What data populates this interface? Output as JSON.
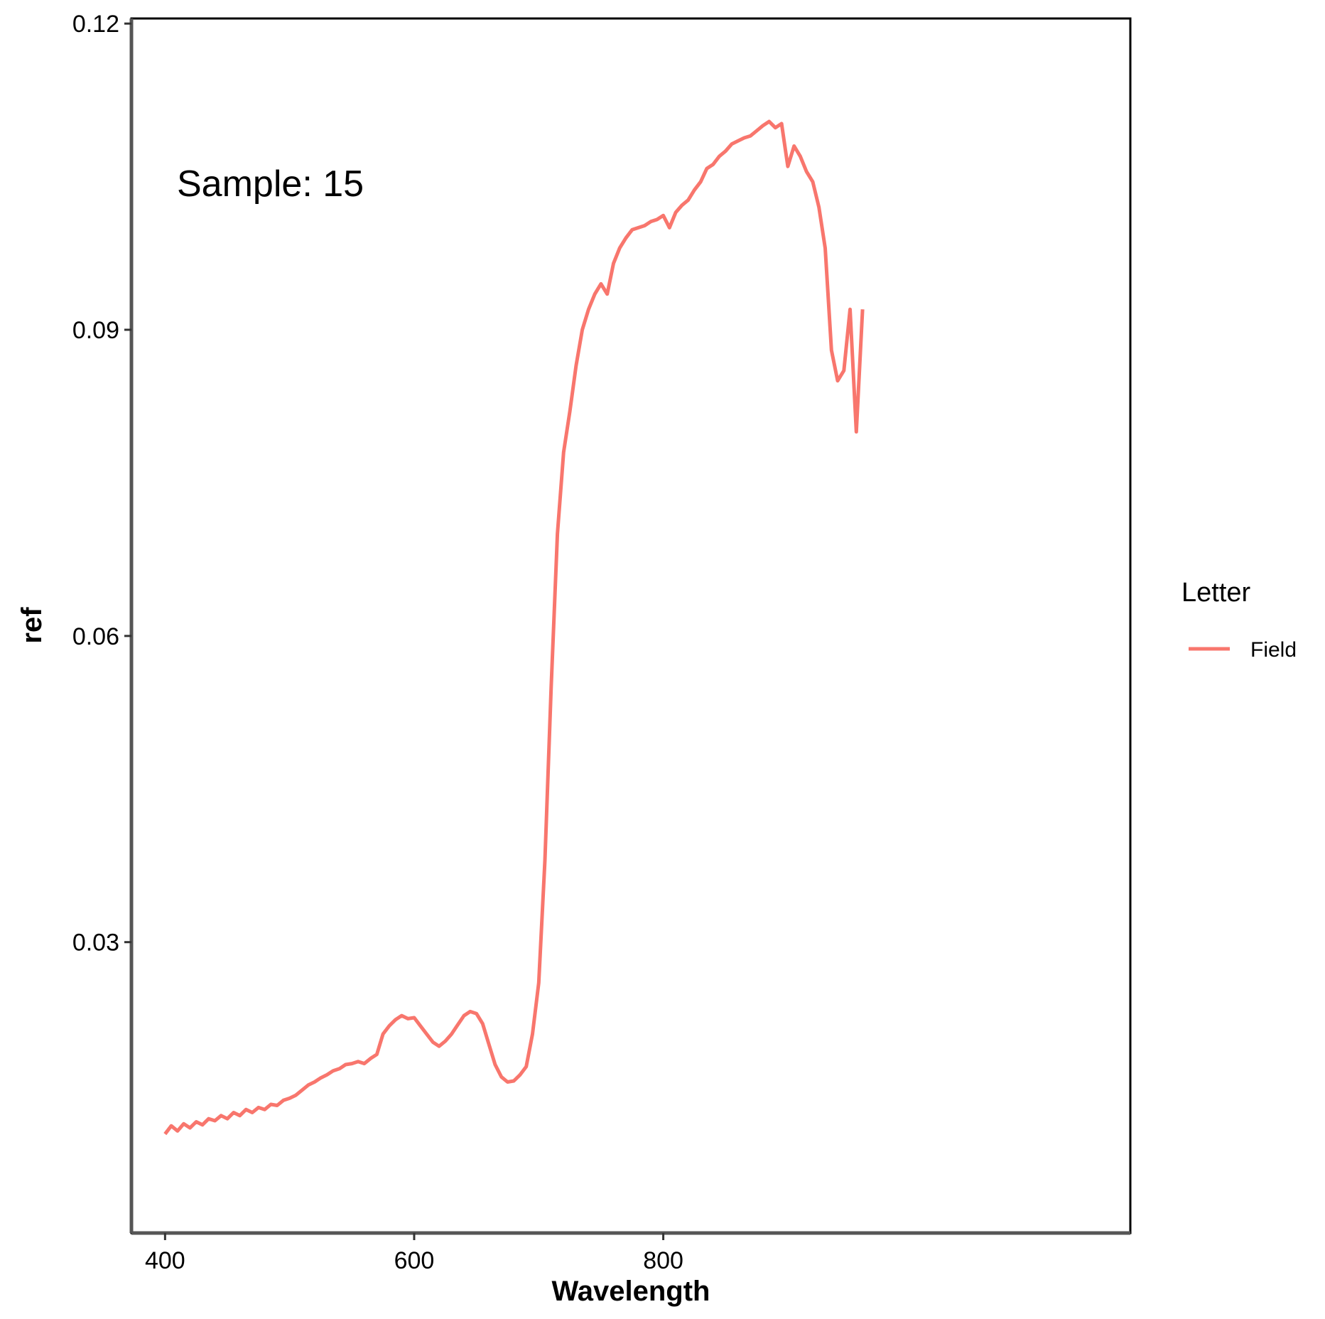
{
  "chart_data": {
    "type": "line",
    "title": "",
    "xlabel": "Wavelength",
    "ylabel": "ref",
    "xlim": [
      373,
      1175
    ],
    "ylim": [
      0.0015,
      0.1205
    ],
    "x_ticks": [
      400,
      600,
      800
    ],
    "x_tick_labels": [
      "400",
      "600",
      "800"
    ],
    "y_ticks": [
      0.03,
      0.06,
      0.09,
      0.12
    ],
    "y_tick_labels": [
      "0.03",
      "0.06",
      "0.09",
      "0.12"
    ],
    "grid": false,
    "legend": {
      "title": "Letter",
      "position": "right",
      "entries": [
        "Field"
      ]
    },
    "annotation": "Sample: 15",
    "series": [
      {
        "name": "Field",
        "color": "#F8766D",
        "x": [
          400,
          405,
          410,
          415,
          420,
          425,
          430,
          435,
          440,
          445,
          450,
          455,
          460,
          465,
          470,
          475,
          480,
          485,
          490,
          495,
          500,
          505,
          510,
          515,
          520,
          525,
          530,
          535,
          540,
          545,
          550,
          555,
          560,
          565,
          570,
          575,
          580,
          585,
          590,
          595,
          600,
          605,
          610,
          615,
          620,
          625,
          630,
          635,
          640,
          645,
          650,
          655,
          660,
          665,
          670,
          675,
          680,
          685,
          690,
          695,
          700,
          705,
          710,
          715,
          720,
          725,
          730,
          735,
          740,
          745,
          750,
          755,
          760,
          765,
          770,
          775,
          780,
          785,
          790,
          795,
          800,
          805,
          810,
          815,
          820,
          825,
          830,
          835,
          840,
          845,
          850,
          855,
          860,
          865,
          870,
          875,
          880,
          885,
          890,
          895,
          900,
          905,
          910,
          915,
          920,
          925,
          930,
          935,
          940,
          945,
          950,
          955,
          960
        ],
        "y": [
          0.0112,
          0.012,
          0.0115,
          0.0122,
          0.0118,
          0.0124,
          0.0121,
          0.0127,
          0.0125,
          0.013,
          0.0127,
          0.0133,
          0.013,
          0.0136,
          0.0133,
          0.0138,
          0.0136,
          0.0141,
          0.014,
          0.0145,
          0.0147,
          0.015,
          0.0155,
          0.016,
          0.0163,
          0.0167,
          0.017,
          0.0174,
          0.0176,
          0.018,
          0.0181,
          0.0183,
          0.0181,
          0.0186,
          0.019,
          0.021,
          0.0218,
          0.0224,
          0.0228,
          0.0225,
          0.0226,
          0.0218,
          0.021,
          0.0202,
          0.0198,
          0.0203,
          0.021,
          0.0219,
          0.0228,
          0.0232,
          0.023,
          0.022,
          0.02,
          0.018,
          0.0168,
          0.0163,
          0.0164,
          0.017,
          0.0178,
          0.021,
          0.026,
          0.038,
          0.055,
          0.07,
          0.078,
          0.082,
          0.0865,
          0.09,
          0.092,
          0.0935,
          0.0945,
          0.0935,
          0.0965,
          0.098,
          0.099,
          0.0998,
          0.1,
          0.1002,
          0.1006,
          0.1008,
          0.1012,
          0.1,
          0.1015,
          0.1022,
          0.1027,
          0.1037,
          0.1045,
          0.1058,
          0.1062,
          0.107,
          0.1075,
          0.1082,
          0.1085,
          0.1088,
          0.109,
          0.1095,
          0.11,
          0.1104,
          0.1098,
          0.1102,
          0.106,
          0.108,
          0.107,
          0.1055,
          0.1045,
          0.102,
          0.098,
          0.088,
          0.085,
          0.086,
          0.092,
          0.08,
          0.092
        ]
      }
    ]
  }
}
